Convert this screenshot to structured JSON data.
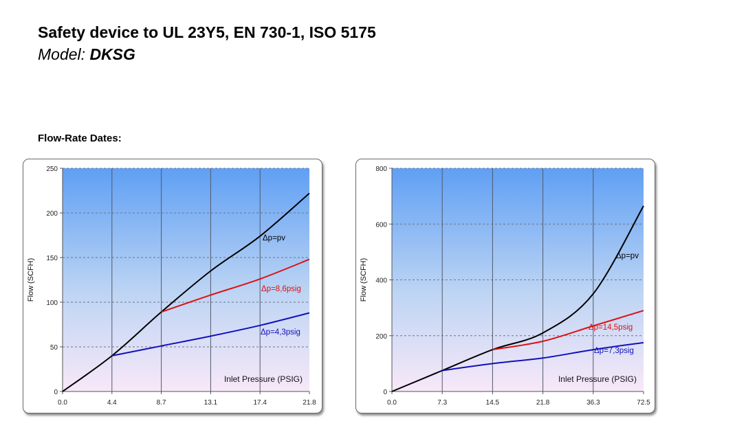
{
  "header": {
    "title": "Safety device to UL 23Y5, EN 730-1, ISO 5175",
    "model_prefix": "Model: ",
    "model_name": "DKSG",
    "section": "Flow-Rate Dates:"
  },
  "chart_data": [
    {
      "type": "line",
      "title": "",
      "xlabel": "Inlet Pressure (PSIG)",
      "ylabel": "Flow (SCFH)",
      "x_categories": [
        "0.0",
        "4.4",
        "8.7",
        "13.1",
        "17.4",
        "21.8"
      ],
      "yticks": [
        0,
        50,
        100,
        150,
        200,
        250
      ],
      "ylim": [
        0,
        250
      ],
      "grid": true,
      "series": [
        {
          "name": "Δp=pv",
          "color": "#000000",
          "points": [
            [
              0,
              0
            ],
            [
              4.4,
              40
            ],
            [
              8.7,
              89
            ],
            [
              13.1,
              135
            ],
            [
              17.4,
              174
            ],
            [
              21.8,
              222
            ]
          ]
        },
        {
          "name": "Δp=8,6psig",
          "color": "#dd1111",
          "points": [
            [
              8.7,
              89
            ],
            [
              13.1,
              108
            ],
            [
              17.4,
              126
            ],
            [
              21.8,
              148
            ]
          ]
        },
        {
          "name": "Δp=4,3psig",
          "color": "#1111bb",
          "points": [
            [
              4.4,
              40
            ],
            [
              8.7,
              51
            ],
            [
              13.1,
              62
            ],
            [
              17.4,
              74
            ],
            [
              21.8,
              88
            ]
          ]
        }
      ]
    },
    {
      "type": "line",
      "title": "",
      "xlabel": "Inlet Pressure (PSIG)",
      "ylabel": "Flow (SCFH)",
      "x_categories": [
        "0.0",
        "7.3",
        "14.5",
        "21.8",
        "36.3",
        "72.5"
      ],
      "yticks": [
        0,
        200,
        400,
        600,
        800
      ],
      "ylim": [
        0,
        800
      ],
      "grid": true,
      "series": [
        {
          "name": "Δp=pv",
          "color": "#000000",
          "points": [
            [
              0,
              0
            ],
            [
              7.3,
              75
            ],
            [
              14.5,
              150
            ],
            [
              21.8,
              210
            ],
            [
              36.3,
              350
            ],
            [
              72.5,
              665
            ]
          ]
        },
        {
          "name": "Δp=14,5psig",
          "color": "#dd1111",
          "points": [
            [
              14.5,
              150
            ],
            [
              21.8,
              180
            ],
            [
              36.3,
              235
            ],
            [
              72.5,
              290
            ]
          ]
        },
        {
          "name": "Δp=7,3psig",
          "color": "#1111bb",
          "points": [
            [
              7.3,
              75
            ],
            [
              14.5,
              100
            ],
            [
              21.8,
              120
            ],
            [
              36.3,
              150
            ],
            [
              72.5,
              175
            ]
          ]
        }
      ]
    }
  ]
}
